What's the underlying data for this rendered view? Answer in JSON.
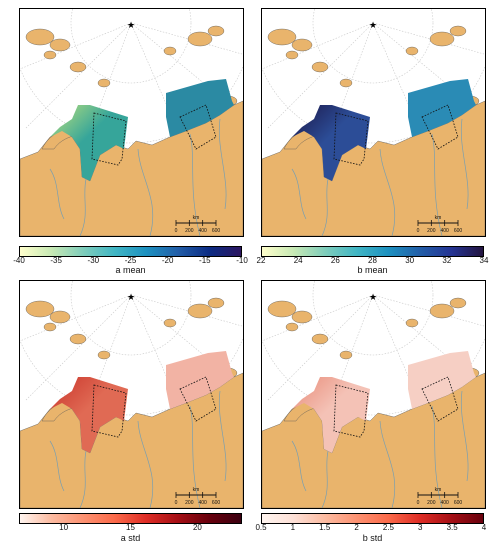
{
  "panels": [
    {
      "id": "a-mean",
      "colorbar_title": "a mean",
      "ticks": [
        "-40",
        "-35",
        "-30",
        "-25",
        "-20",
        "-15",
        "-10"
      ],
      "gradient": [
        "#ffffcc",
        "#c7e9b4",
        "#7fcdbb",
        "#41b6c4",
        "#1d91c0",
        "#225ea8",
        "#0c2c84",
        "#2c1660"
      ],
      "fill_west": "#36a59a",
      "fill_west_hi": "#bfe27a",
      "fill_east": "#2b8aa3"
    },
    {
      "id": "b-mean",
      "colorbar_title": "b mean",
      "ticks": [
        "22",
        "24",
        "26",
        "28",
        "30",
        "32",
        "34"
      ],
      "gradient": [
        "#ffffcc",
        "#c7e9b4",
        "#7fcdbb",
        "#41b6c4",
        "#1d91c0",
        "#225ea8",
        "#253494",
        "#23143f"
      ],
      "fill_west": "#2c4d97",
      "fill_west_hi": "#1b1546",
      "fill_east": "#2a8bb5"
    },
    {
      "id": "a-std",
      "colorbar_title": "a std",
      "ticks": [
        "10",
        "15",
        "20"
      ],
      "gradient": [
        "#fff5f0",
        "#fcbba1",
        "#fc9272",
        "#fb6a4a",
        "#de2d26",
        "#a50f15",
        "#67000d",
        "#3b0010"
      ],
      "fill_west": "#e06a54",
      "fill_west_hi": "#c9342a",
      "fill_east": "#f2b3a4"
    },
    {
      "id": "b-std",
      "colorbar_title": "b std",
      "ticks": [
        "0.5",
        "1",
        "1.5",
        "2",
        "2.5",
        "3",
        "3.5",
        "4"
      ],
      "gradient": [
        "#fff5f0",
        "#fde0d7",
        "#fcbba1",
        "#fc9272",
        "#fb6a4a",
        "#de2d26",
        "#a50f15",
        "#67000d"
      ],
      "fill_west": "#f4c2b6",
      "fill_west_hi": "#e88a77",
      "fill_east": "#f6cfc4"
    }
  ],
  "scale_bar": {
    "unit": "km",
    "labels": [
      "0",
      "200",
      "400",
      "600"
    ]
  },
  "colors": {
    "land": "#e9b46c",
    "ocean": "#ffffff",
    "grid": "#c8c8c8",
    "river": "#7a9fb0"
  }
}
